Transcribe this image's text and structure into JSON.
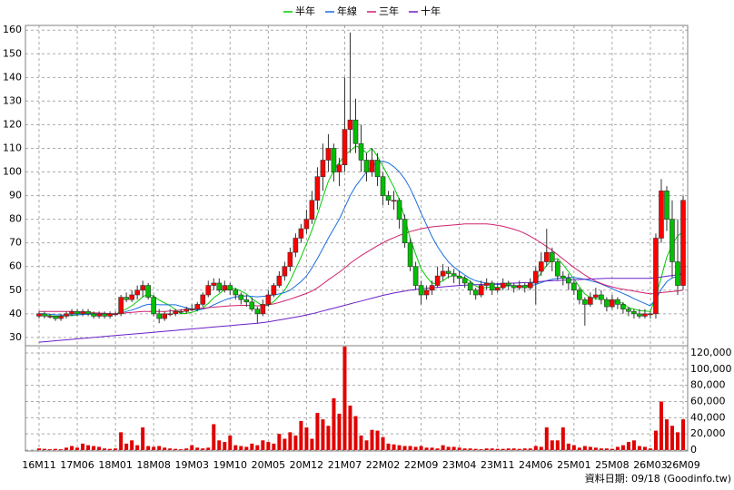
{
  "chart_data": {
    "type": "candlestick",
    "legend": "top",
    "grid": true,
    "up_color": "#ff0000",
    "down_color": "#00c000",
    "categories": [
      "16M11",
      null,
      null,
      null,
      null,
      null,
      null,
      "17M06",
      null,
      null,
      null,
      null,
      null,
      null,
      "18M01",
      null,
      null,
      null,
      null,
      null,
      null,
      "18M08",
      null,
      null,
      null,
      null,
      null,
      null,
      "19M03",
      null,
      null,
      null,
      null,
      null,
      null,
      "19M10",
      null,
      null,
      null,
      null,
      null,
      null,
      "20M05",
      null,
      null,
      null,
      null,
      null,
      null,
      "20M12",
      null,
      null,
      null,
      null,
      null,
      null,
      "21M07",
      null,
      null,
      null,
      null,
      null,
      null,
      "22M02",
      null,
      null,
      null,
      null,
      null,
      null,
      "22M09",
      null,
      null,
      null,
      null,
      null,
      null,
      "23M04",
      null,
      null,
      null,
      null,
      null,
      null,
      "23M11",
      null,
      null,
      null,
      null,
      null,
      null,
      "24M06",
      null,
      null,
      null,
      null,
      null,
      null,
      "25M01",
      null,
      null,
      null,
      null,
      null,
      null,
      "25M08",
      null,
      null,
      null,
      null,
      null,
      null,
      "26M03",
      null,
      null,
      null,
      null,
      null,
      "26M09"
    ],
    "open": [
      39,
      40,
      39,
      39,
      38,
      39,
      40,
      41,
      40,
      41,
      40,
      39,
      40,
      39,
      40,
      40,
      47,
      46,
      48,
      50,
      52,
      47,
      40,
      38,
      40,
      40,
      41,
      41,
      42,
      42,
      44,
      48,
      52,
      53,
      50,
      52,
      50,
      48,
      46,
      45,
      42,
      40,
      44,
      48,
      52,
      56,
      60,
      66,
      72,
      76,
      80,
      88,
      98,
      105,
      110,
      100,
      103,
      118,
      122,
      112,
      105,
      100,
      105,
      98,
      90,
      88,
      88,
      80,
      70,
      60,
      52,
      48,
      50,
      52,
      56,
      58,
      57,
      56,
      55,
      53,
      50,
      48,
      52,
      53,
      50,
      51,
      53,
      52,
      51,
      52,
      51,
      53,
      58,
      62,
      66,
      62,
      56,
      55,
      53,
      50,
      46,
      44,
      47,
      48,
      46,
      43,
      46,
      44,
      42,
      41,
      40,
      39,
      40,
      40,
      72,
      92,
      80,
      62,
      52
    ],
    "high": [
      41,
      41,
      40,
      39,
      40,
      41,
      42,
      42,
      42,
      42,
      41,
      41,
      41,
      41,
      41,
      48,
      49,
      50,
      52,
      54,
      53,
      48,
      42,
      41,
      42,
      42,
      42,
      43,
      44,
      45,
      49,
      54,
      55,
      55,
      54,
      53,
      51,
      49,
      48,
      47,
      43,
      46,
      50,
      53,
      58,
      62,
      68,
      74,
      78,
      84,
      92,
      102,
      112,
      116,
      112,
      106,
      140,
      159,
      131,
      120,
      108,
      110,
      108,
      100,
      92,
      92,
      89,
      82,
      72,
      62,
      54,
      52,
      54,
      60,
      61,
      60,
      59,
      58,
      56,
      54,
      51,
      54,
      55,
      54,
      53,
      55,
      54,
      53,
      54,
      53,
      55,
      60,
      66,
      76,
      68,
      63,
      58,
      57,
      54,
      51,
      47,
      49,
      51,
      50,
      47,
      48,
      47,
      45,
      43,
      42,
      42,
      42,
      41,
      74,
      97,
      94,
      88,
      80,
      90
    ],
    "low": [
      38,
      38,
      38,
      37,
      37,
      38,
      39,
      39,
      39,
      39,
      38,
      38,
      38,
      38,
      39,
      39,
      45,
      45,
      46,
      47,
      46,
      39,
      36,
      37,
      39,
      39,
      40,
      40,
      41,
      41,
      43,
      47,
      50,
      49,
      49,
      48,
      46,
      44,
      43,
      41,
      36,
      39,
      43,
      47,
      51,
      54,
      58,
      64,
      70,
      74,
      78,
      84,
      92,
      100,
      96,
      94,
      100,
      108,
      108,
      100,
      96,
      98,
      94,
      86,
      86,
      84,
      76,
      68,
      58,
      50,
      44,
      46,
      48,
      51,
      54,
      55,
      53,
      52,
      51,
      48,
      46,
      47,
      50,
      48,
      49,
      50,
      50,
      49,
      50,
      49,
      50,
      44,
      56,
      60,
      58,
      54,
      52,
      50,
      48,
      44,
      35,
      43,
      46,
      44,
      41,
      42,
      42,
      40,
      39,
      38,
      38,
      38,
      38,
      38,
      70,
      75,
      55,
      48,
      50
    ],
    "close": [
      40,
      39,
      39,
      38,
      39,
      40,
      41,
      40,
      41,
      40,
      39,
      40,
      39,
      40,
      40,
      47,
      46,
      48,
      50,
      52,
      47,
      40,
      38,
      40,
      40,
      41,
      41,
      42,
      42,
      44,
      48,
      52,
      53,
      50,
      52,
      50,
      48,
      46,
      45,
      42,
      40,
      44,
      48,
      52,
      56,
      60,
      66,
      72,
      76,
      80,
      88,
      98,
      105,
      110,
      100,
      103,
      118,
      122,
      112,
      105,
      100,
      105,
      98,
      90,
      88,
      88,
      80,
      70,
      60,
      52,
      48,
      50,
      52,
      56,
      58,
      57,
      56,
      55,
      53,
      50,
      48,
      52,
      53,
      50,
      51,
      53,
      52,
      51,
      52,
      51,
      53,
      58,
      62,
      66,
      62,
      56,
      55,
      53,
      50,
      46,
      44,
      47,
      48,
      46,
      43,
      46,
      44,
      42,
      41,
      40,
      39,
      40,
      40,
      72,
      92,
      80,
      62,
      52,
      88
    ],
    "series": [
      {
        "name": "半年",
        "color": "#00cc00",
        "values": [
          40,
          39.5,
          39.2,
          39,
          39,
          39.2,
          39.3,
          39.5,
          39.8,
          40,
          40.2,
          40.2,
          39.8,
          39.8,
          39.8,
          41,
          42,
          43.4,
          45.2,
          47.2,
          48.4,
          47.4,
          45.8,
          44.6,
          43.4,
          41.8,
          40,
          40.2,
          40.6,
          41.4,
          42.6,
          44.4,
          46.8,
          48.4,
          50.4,
          51,
          50.6,
          49.6,
          48.4,
          46.4,
          44.8,
          43.4,
          43.6,
          45.2,
          47.6,
          50,
          54,
          59,
          64,
          69.6,
          75.4,
          82,
          89.2,
          96,
          100.6,
          104,
          107,
          109,
          111,
          110.2,
          108,
          110,
          106.6,
          102.4,
          98,
          93.6,
          88.2,
          80.6,
          71.8,
          65.2,
          59,
          55.6,
          53,
          52.8,
          54,
          55.6,
          56.2,
          55.8,
          55.2,
          53.8,
          51.8,
          50.8,
          51.2,
          51.4,
          51.2,
          51.2,
          52,
          51.6,
          51.6,
          51.8,
          52.4,
          54.2,
          57.4,
          60.4,
          62.8,
          63.4,
          60.8,
          57.8,
          54.8,
          51.4,
          48.4,
          46.8,
          46.4,
          46.4,
          45.8,
          45.2,
          45,
          44.4,
          42.6,
          42,
          41.4,
          41.2,
          41,
          47.4,
          55.4,
          64,
          69.2,
          73,
          74.6
        ]
      },
      {
        "name": "年線",
        "color": "#1a6ee0",
        "values": [
          40,
          40,
          39.8,
          39.6,
          39.5,
          39.5,
          39.6,
          39.6,
          39.7,
          39.8,
          39.8,
          39.8,
          39.7,
          39.8,
          39.8,
          40.4,
          41,
          41.6,
          42.4,
          43.4,
          44,
          44,
          43.8,
          43.8,
          43.8,
          43.8,
          43.2,
          42.6,
          42,
          41.6,
          42,
          42.6,
          43.8,
          44.8,
          45.8,
          46.6,
          47.2,
          47.4,
          47.6,
          47.4,
          47.2,
          47.4,
          47.6,
          48,
          48.4,
          49,
          50,
          51.8,
          53.6,
          56,
          59.4,
          63.4,
          67.6,
          72,
          76,
          80,
          85,
          90,
          94,
          97,
          100,
          102.4,
          104,
          104.6,
          103.8,
          102.2,
          100,
          97,
          93,
          88,
          82.6,
          77.6,
          72.6,
          68.4,
          65,
          62,
          59.8,
          58,
          56.4,
          55,
          54,
          53.4,
          53,
          52.6,
          52.4,
          52.2,
          52,
          51.8,
          51.8,
          51.8,
          51.8,
          52.4,
          53.2,
          54,
          54.6,
          55,
          55.2,
          55.4,
          55.4,
          55,
          54.6,
          54,
          53.4,
          52.6,
          51.6,
          50.6,
          49.6,
          48.6,
          47.6,
          46.4,
          45.4,
          44.4,
          43.4,
          46.2,
          50.4,
          53.6,
          55.2,
          55.8,
          58
        ]
      },
      {
        "name": "三年",
        "color": "#d0206e",
        "values": [
          41,
          41,
          41,
          41,
          41,
          41,
          41,
          40.8,
          40.6,
          40.5,
          40.4,
          40.3,
          40.2,
          40.1,
          40,
          40.2,
          40.4,
          40.6,
          40.8,
          41,
          41,
          41,
          41,
          41,
          41.2,
          41.4,
          41.6,
          41.8,
          42,
          42.2,
          42.4,
          42.6,
          42.8,
          43,
          43.2,
          43.4,
          43.5,
          43.6,
          43.6,
          43.5,
          43.4,
          43.5,
          43.8,
          44.2,
          44.8,
          45.5,
          46.2,
          47,
          47.8,
          48.6,
          49.6,
          51,
          52.6,
          54.4,
          56,
          57.6,
          59.4,
          61.4,
          63,
          64.6,
          66,
          67.4,
          68.8,
          70,
          71.2,
          72.2,
          73.2,
          74,
          74.8,
          75.4,
          76,
          76.4,
          76.8,
          77,
          77.2,
          77.4,
          77.6,
          77.8,
          78,
          78,
          78,
          78,
          78,
          77.8,
          77.4,
          77,
          76.4,
          75.8,
          75,
          74,
          72.8,
          71.4,
          70,
          68.4,
          66.8,
          65,
          63.2,
          61.4,
          59.6,
          58,
          56.4,
          55,
          53.8,
          52.8,
          52,
          51.4,
          50.8,
          50.4,
          50,
          49.6,
          49.2,
          48.8,
          48.4,
          48.6,
          49,
          49.2,
          49.4,
          49.6,
          50
        ]
      },
      {
        "name": "十年",
        "color": "#6a1fc8",
        "values": [
          28,
          28.2,
          28.4,
          28.6,
          28.8,
          29,
          29.2,
          29.4,
          29.6,
          29.8,
          30,
          30.2,
          30.4,
          30.6,
          30.8,
          31,
          31.2,
          31.4,
          31.6,
          31.8,
          32,
          32.2,
          32.4,
          32.6,
          32.8,
          33,
          33.2,
          33.4,
          33.6,
          33.8,
          34,
          34.2,
          34.4,
          34.6,
          34.8,
          35,
          35.2,
          35.4,
          35.6,
          35.8,
          36,
          36.3,
          36.6,
          37,
          37.4,
          37.8,
          38.2,
          38.6,
          39,
          39.5,
          40,
          40.6,
          41.2,
          41.8,
          42.4,
          43,
          43.6,
          44.2,
          44.8,
          45.4,
          46,
          46.6,
          47.2,
          47.8,
          48.3,
          48.8,
          49.2,
          49.6,
          50,
          50.3,
          50.6,
          50.8,
          51,
          51.2,
          51.4,
          51.6,
          51.8,
          52,
          52.1,
          52.2,
          52.3,
          52.4,
          52.5,
          52.6,
          52.7,
          52.8,
          52.9,
          53,
          53.1,
          53.2,
          53.3,
          53.5,
          53.7,
          53.9,
          54,
          54.1,
          54.2,
          54.3,
          54.4,
          54.5,
          54.6,
          54.7,
          54.8,
          54.9,
          55,
          55,
          55,
          55,
          55,
          55,
          55,
          55,
          55,
          55.3,
          55.6,
          55.9,
          56.2,
          56.5,
          56.8
        ]
      }
    ],
    "ylim": [
      26.5,
      162
    ],
    "yticks": [
      30,
      40,
      50,
      60,
      70,
      80,
      90,
      100,
      110,
      120,
      130,
      140,
      150,
      160
    ],
    "volume": {
      "color": "#e00000",
      "values": [
        2000,
        1500,
        1000,
        1500,
        1000,
        3000,
        5000,
        3000,
        8000,
        6000,
        5000,
        4000,
        2000,
        1500,
        2000,
        22000,
        8000,
        12000,
        6000,
        28000,
        5000,
        4000,
        5000,
        3000,
        2000,
        1500,
        1000,
        2000,
        6000,
        3000,
        2000,
        3000,
        32000,
        12000,
        10000,
        18000,
        6000,
        5000,
        4000,
        8000,
        6000,
        12000,
        10000,
        8000,
        20000,
        14000,
        22000,
        18000,
        36000,
        28000,
        14000,
        46000,
        38000,
        30000,
        64000,
        45000,
        128000,
        55000,
        42000,
        18000,
        12000,
        25000,
        24000,
        16000,
        8000,
        7000,
        6000,
        5000,
        5000,
        4000,
        5000,
        3000,
        3000,
        2000,
        6000,
        4000,
        4000,
        3000,
        2000,
        2000,
        1500,
        1000,
        2000,
        2000,
        1500,
        1500,
        2000,
        2000,
        1500,
        2000,
        2000,
        5000,
        4000,
        28000,
        12000,
        12000,
        28000,
        8000,
        6000,
        3000,
        5000,
        4000,
        3000,
        2000,
        2000,
        1500,
        4000,
        6000,
        10000,
        12000,
        5000,
        4000,
        2000,
        24000,
        60000,
        38000,
        30000,
        22000,
        38000
      ],
      "ylim": [
        0,
        129000
      ],
      "yticks": [
        0,
        {
          "value": 20000,
          "label": "20,000"
        },
        {
          "value": 40000,
          "label": "40,000"
        },
        {
          "value": 60000,
          "label": "60,000"
        },
        {
          "value": 80000,
          "label": "80,000"
        },
        {
          "value": 100000,
          "label": "100,000"
        },
        {
          "value": 120000,
          "label": "120,000"
        }
      ]
    },
    "note": "資料日期: 09/18 (Goodinfo.tw)"
  }
}
